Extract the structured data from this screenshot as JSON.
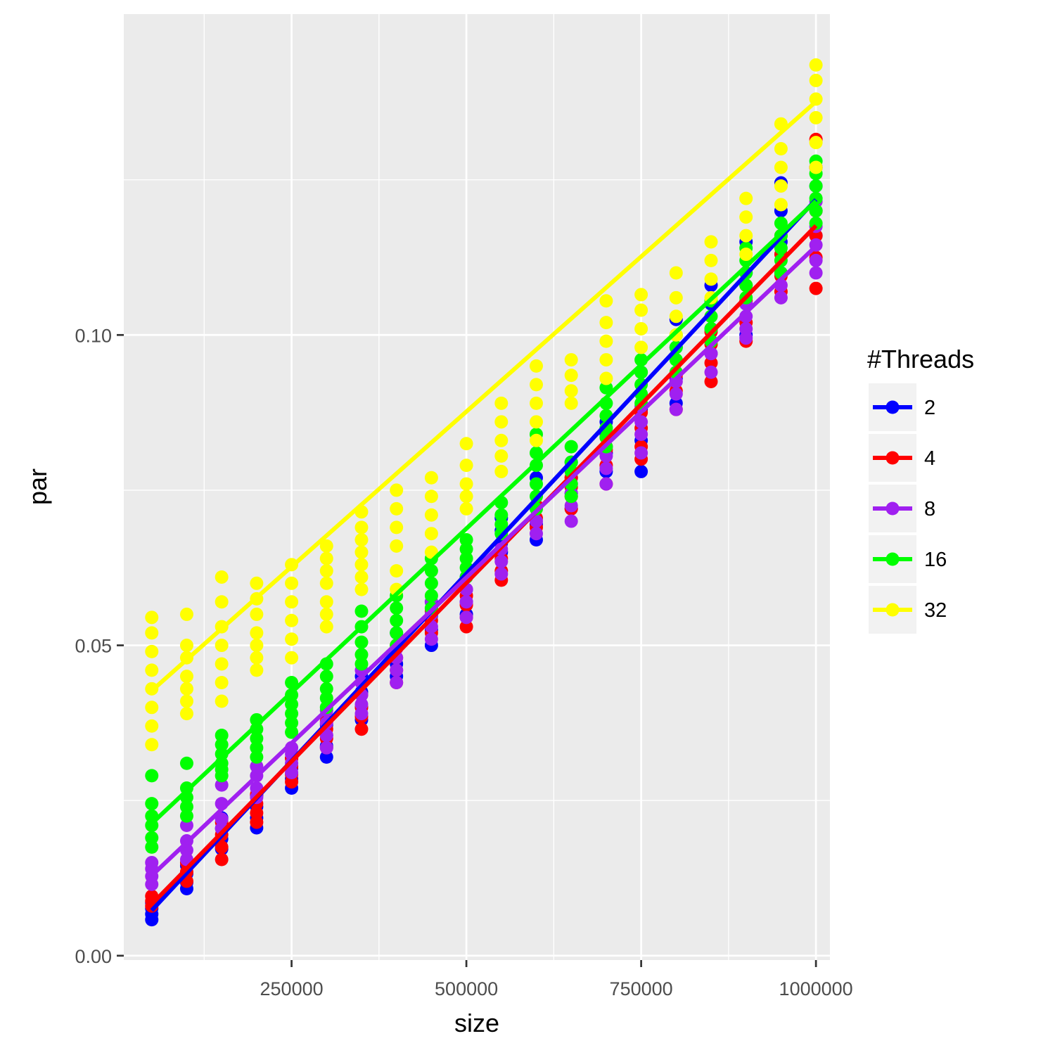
{
  "chart_data": {
    "type": "scatter",
    "xlabel": "size",
    "ylabel": "par",
    "xlim": [
      10000,
      1020000
    ],
    "ylim": [
      -0.0007,
      0.1517
    ],
    "x_ticks": [
      250000,
      500000,
      750000,
      1000000
    ],
    "x_tick_labels": [
      "250000",
      "500000",
      "750000",
      "1000000"
    ],
    "y_ticks": [
      0.0,
      0.05,
      0.1
    ],
    "y_tick_labels": [
      "0.00",
      "0.05",
      "0.10"
    ],
    "grid": true,
    "legend": {
      "title": "#Threads",
      "placement": "right"
    },
    "x": [
      50000,
      100000,
      150000,
      200000,
      250000,
      300000,
      350000,
      400000,
      450000,
      500000,
      550000,
      600000,
      650000,
      700000,
      750000,
      800000,
      850000,
      900000,
      950000,
      1000000
    ],
    "series": [
      {
        "name": "2",
        "color": "#0000ff",
        "fit": [
          0.0073,
          0.1218
        ],
        "points": [
          [
            50000,
            [
              0.0058,
              0.0067,
              0.0076,
              0.0085
            ]
          ],
          [
            100000,
            [
              0.0108,
              0.0118,
              0.0132,
              0.0145
            ]
          ],
          [
            150000,
            [
              0.0172,
              0.0188,
              0.0205,
              0.0222
            ]
          ],
          [
            200000,
            [
              0.0206,
              0.0222,
              0.024,
              0.0258
            ]
          ],
          [
            250000,
            [
              0.027,
              0.0285,
              0.0302,
              0.0318
            ]
          ],
          [
            300000,
            [
              0.032,
              0.0338,
              0.0355,
              0.0372
            ]
          ],
          [
            350000,
            [
              0.038,
              0.04,
              0.0425,
              0.045
            ]
          ],
          [
            400000,
            [
              0.045,
              0.047,
              0.0495,
              0.052
            ]
          ],
          [
            450000,
            [
              0.05,
              0.0525,
              0.0548,
              0.057
            ]
          ],
          [
            500000,
            [
              0.055,
              0.057,
              0.059,
              0.061
            ]
          ],
          [
            550000,
            [
              0.065,
              0.0665,
              0.0685,
              0.0705
            ]
          ],
          [
            600000,
            [
              0.067,
              0.0695,
              0.0725,
              0.077
            ]
          ],
          [
            650000,
            [
              0.072,
              0.0745,
              0.077,
              0.0795
            ]
          ],
          [
            700000,
            [
              0.078,
              0.081,
              0.084,
              0.086
            ]
          ],
          [
            750000,
            [
              0.078,
              0.083,
              0.088,
              0.094
            ]
          ],
          [
            800000,
            [
              0.089,
              0.093,
              0.098,
              0.1025
            ]
          ],
          [
            850000,
            [
              0.097,
              0.101,
              0.105,
              0.108
            ]
          ],
          [
            900000,
            [
              0.1,
              0.105,
              0.11,
              0.115
            ]
          ],
          [
            950000,
            [
              0.11,
              0.115,
              0.12,
              0.1245
            ]
          ],
          [
            1000000,
            [
              0.116,
              0.12,
              0.124,
              0.127
            ]
          ]
        ]
      },
      {
        "name": "4",
        "color": "#ff0000",
        "fit": [
          0.0083,
          0.1176
        ],
        "points": [
          [
            50000,
            [
              0.008,
              0.0088,
              0.0096
            ]
          ],
          [
            100000,
            [
              0.012,
              0.0135,
              0.015
            ]
          ],
          [
            150000,
            [
              0.0155,
              0.0175,
              0.0195,
              0.0215
            ]
          ],
          [
            200000,
            [
              0.0215,
              0.023,
              0.0245,
              0.026
            ]
          ],
          [
            250000,
            [
              0.028,
              0.0292,
              0.0305,
              0.0318
            ]
          ],
          [
            300000,
            [
              0.0335,
              0.035,
              0.0365,
              0.0378
            ]
          ],
          [
            350000,
            [
              0.0365,
              0.0385,
              0.04,
              0.042
            ]
          ],
          [
            400000,
            [
              0.044,
              0.046,
              0.048,
              0.05
            ]
          ],
          [
            450000,
            [
              0.052,
              0.054,
              0.0555
            ]
          ],
          [
            500000,
            [
              0.053,
              0.0545,
              0.0565,
              0.058
            ]
          ],
          [
            550000,
            [
              0.0605,
              0.062,
              0.064
            ]
          ],
          [
            600000,
            [
              0.069,
              0.0705,
              0.0725
            ]
          ],
          [
            650000,
            [
              0.072,
              0.074,
              0.0755,
              0.077
            ]
          ],
          [
            700000,
            [
              0.076,
              0.079,
              0.0815,
              0.0835
            ]
          ],
          [
            750000,
            [
              0.08,
              0.082,
              0.085,
              0.0875
            ]
          ],
          [
            800000,
            [
              0.088,
              0.091,
              0.0935
            ]
          ],
          [
            850000,
            [
              0.0925,
              0.0955,
              0.0985,
              0.1005
            ]
          ],
          [
            900000,
            [
              0.099,
              0.102,
              0.1055,
              0.108
            ]
          ],
          [
            950000,
            [
              0.107,
              0.1095,
              0.113,
              0.116
            ]
          ],
          [
            1000000,
            [
              0.1075,
              0.1125,
              0.116,
              0.12,
              0.127,
              0.1315
            ]
          ]
        ]
      },
      {
        "name": "8",
        "color": "#a020f0",
        "fit": [
          0.0129,
          0.1143
        ],
        "points": [
          [
            50000,
            [
              0.0115,
              0.0128,
              0.014,
              0.015
            ]
          ],
          [
            100000,
            [
              0.0155,
              0.017,
              0.0185,
              0.021
            ]
          ],
          [
            150000,
            [
              0.0205,
              0.022,
              0.0245,
              0.0275
            ]
          ],
          [
            200000,
            [
              0.0255,
              0.027,
              0.029,
              0.0305
            ]
          ],
          [
            250000,
            [
              0.0295,
              0.031,
              0.0325,
              0.0335
            ]
          ],
          [
            300000,
            [
              0.0335,
              0.0355,
              0.0375,
              0.0395
            ]
          ],
          [
            350000,
            [
              0.039,
              0.0405,
              0.042,
              0.044,
              0.046
            ]
          ],
          [
            400000,
            [
              0.044,
              0.046,
              0.048,
              0.0495
            ]
          ],
          [
            450000,
            [
              0.051,
              0.053,
              0.055,
              0.057
            ]
          ],
          [
            500000,
            [
              0.0545,
              0.057,
              0.059
            ]
          ],
          [
            550000,
            [
              0.0615,
              0.0635,
              0.0655
            ]
          ],
          [
            600000,
            [
              0.068,
              0.07,
              0.072
            ]
          ],
          [
            650000,
            [
              0.07,
              0.0725,
              0.0745,
              0.076
            ]
          ],
          [
            700000,
            [
              0.076,
              0.0785,
              0.0805,
              0.082
            ]
          ],
          [
            750000,
            [
              0.081,
              0.084,
              0.086,
              0.0885
            ]
          ],
          [
            800000,
            [
              0.088,
              0.0905,
              0.0925
            ]
          ],
          [
            850000,
            [
              0.094,
              0.097,
              0.099
            ]
          ],
          [
            900000,
            [
              0.0995,
              0.101,
              0.103,
              0.105
            ]
          ],
          [
            950000,
            [
              0.106,
              0.108,
              0.11
            ]
          ],
          [
            1000000,
            [
              0.11,
              0.112,
              0.1145,
              0.1175,
              0.1215
            ]
          ]
        ]
      },
      {
        "name": "16",
        "color": "#00ff00",
        "fit": [
          0.0213,
          0.1216
        ],
        "points": [
          [
            50000,
            [
              0.0175,
              0.019,
              0.021,
              0.0225,
              0.0245,
              0.029
            ]
          ],
          [
            100000,
            [
              0.0225,
              0.024,
              0.0255,
              0.027,
              0.031
            ]
          ],
          [
            150000,
            [
              0.029,
              0.03,
              0.031,
              0.0325,
              0.034,
              0.0355
            ]
          ],
          [
            200000,
            [
              0.032,
              0.0335,
              0.035,
              0.0365,
              0.038
            ]
          ],
          [
            250000,
            [
              0.036,
              0.0375,
              0.039,
              0.0405,
              0.042,
              0.044
            ]
          ],
          [
            300000,
            [
              0.04,
              0.0415,
              0.043,
              0.045,
              0.047
            ]
          ],
          [
            350000,
            [
              0.047,
              0.0485,
              0.0505,
              0.053,
              0.0555
            ]
          ],
          [
            400000,
            [
              0.05,
              0.052,
              0.054,
              0.056,
              0.058
            ]
          ],
          [
            450000,
            [
              0.056,
              0.058,
              0.06,
              0.062,
              0.064
            ]
          ],
          [
            500000,
            [
              0.061,
              0.0625,
              0.064,
              0.0655,
              0.067
            ]
          ],
          [
            550000,
            [
              0.068,
              0.0695,
              0.071,
              0.073
            ]
          ],
          [
            600000,
            [
              0.072,
              0.074,
              0.076,
              0.079,
              0.081,
              0.084
            ]
          ],
          [
            650000,
            [
              0.074,
              0.076,
              0.078,
              0.0795,
              0.082
            ]
          ],
          [
            700000,
            [
              0.082,
              0.0835,
              0.085,
              0.087,
              0.089,
              0.0915
            ]
          ],
          [
            750000,
            [
              0.089,
              0.0905,
              0.092,
              0.094,
              0.096
            ]
          ],
          [
            800000,
            [
              0.094,
              0.096,
              0.098,
              0.1
            ]
          ],
          [
            850000,
            [
              0.099,
              0.101,
              0.103,
              0.1055
            ]
          ],
          [
            900000,
            [
              0.106,
              0.108,
              0.11,
              0.112,
              0.114
            ]
          ],
          [
            950000,
            [
              0.11,
              0.112,
              0.114,
              0.116,
              0.118
            ]
          ],
          [
            1000000,
            [
              0.118,
              0.12,
              0.122,
              0.124,
              0.126,
              0.128
            ]
          ]
        ]
      },
      {
        "name": "32",
        "color": "#ffff00",
        "fit": [
          0.0427,
          0.1376
        ],
        "points": [
          [
            50000,
            [
              0.034,
              0.037,
              0.04,
              0.043,
              0.046,
              0.049,
              0.052,
              0.0545
            ]
          ],
          [
            100000,
            [
              0.039,
              0.041,
              0.043,
              0.045,
              0.048,
              0.05,
              0.055
            ]
          ],
          [
            150000,
            [
              0.041,
              0.044,
              0.047,
              0.05,
              0.053,
              0.057,
              0.061
            ]
          ],
          [
            200000,
            [
              0.046,
              0.048,
              0.05,
              0.052,
              0.055,
              0.0575,
              0.06
            ]
          ],
          [
            250000,
            [
              0.048,
              0.051,
              0.054,
              0.057,
              0.06,
              0.063
            ]
          ],
          [
            300000,
            [
              0.053,
              0.055,
              0.057,
              0.06,
              0.062,
              0.064,
              0.066
            ]
          ],
          [
            350000,
            [
              0.059,
              0.061,
              0.063,
              0.065,
              0.067,
              0.069,
              0.0715
            ]
          ],
          [
            400000,
            [
              0.059,
              0.062,
              0.066,
              0.069,
              0.072,
              0.075
            ]
          ],
          [
            450000,
            [
              0.065,
              0.068,
              0.071,
              0.074,
              0.077
            ]
          ],
          [
            500000,
            [
              0.072,
              0.074,
              0.076,
              0.079,
              0.0825
            ]
          ],
          [
            550000,
            [
              0.078,
              0.0805,
              0.083,
              0.086,
              0.089
            ]
          ],
          [
            600000,
            [
              0.083,
              0.086,
              0.089,
              0.092,
              0.095
            ]
          ],
          [
            650000,
            [
              0.089,
              0.091,
              0.0935,
              0.096
            ]
          ],
          [
            700000,
            [
              0.093,
              0.096,
              0.099,
              0.102,
              0.1055
            ]
          ],
          [
            750000,
            [
              0.098,
              0.101,
              0.104,
              0.1065
            ]
          ],
          [
            800000,
            [
              0.1,
              0.103,
              0.106,
              0.11
            ]
          ],
          [
            850000,
            [
              0.106,
              0.109,
              0.112,
              0.115
            ]
          ],
          [
            900000,
            [
              0.113,
              0.116,
              0.119,
              0.122
            ]
          ],
          [
            950000,
            [
              0.121,
              0.124,
              0.127,
              0.13,
              0.134
            ]
          ],
          [
            1000000,
            [
              0.127,
              0.131,
              0.135,
              0.138,
              0.141,
              0.1435
            ]
          ]
        ]
      }
    ]
  }
}
